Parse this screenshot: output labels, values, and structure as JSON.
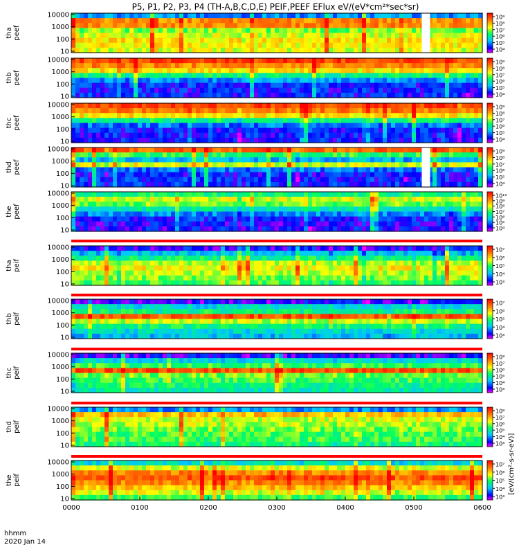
{
  "chart_data": {
    "type": "heatmap",
    "title": "P5, P1, P2, P3, P4 (TH-A,B,C,D,E) PEIF,PEEF EFlux eV/(eV*cm²*sec*sr)",
    "xlabel": "hhmm",
    "date_label": "2020 Jan 14",
    "x_ticks": [
      "0000",
      "0100",
      "0200",
      "0300",
      "0400",
      "0500",
      "0600"
    ],
    "xlim": [
      "0000",
      "0600"
    ],
    "y_scale": "log",
    "colorbar_label": "[eV/(cm²-s-sr-eV)]",
    "panels": [
      {
        "label": [
          "tha",
          "peef"
        ],
        "y_ticks": [
          "10000",
          "1000",
          "100",
          "10"
        ],
        "cbar_ticks": [
          "10⁹",
          "10⁸",
          "10⁷",
          "10⁶",
          "10⁵",
          "10⁴"
        ],
        "gap": [
          "0450",
          "0500"
        ]
      },
      {
        "label": [
          "thb",
          "peef"
        ],
        "y_ticks": [
          "10000",
          "1000",
          "100",
          "10"
        ],
        "cbar_ticks": [
          "10⁹",
          "10⁸",
          "10⁷",
          "10⁶",
          "10⁵",
          "10⁴"
        ]
      },
      {
        "label": [
          "thc",
          "peef"
        ],
        "y_ticks": [
          "10000",
          "1000",
          "100",
          "10"
        ],
        "cbar_ticks": [
          "10⁹",
          "10⁸",
          "10⁷",
          "10⁶",
          "10⁵",
          "10⁴"
        ]
      },
      {
        "label": [
          "thd",
          "peef"
        ],
        "y_ticks": [
          "10000",
          "1000",
          "100",
          "10"
        ],
        "cbar_ticks": [
          "10⁹",
          "10⁸",
          "10⁷",
          "10⁶",
          "10⁵",
          "10⁴"
        ],
        "gap": [
          "0450",
          "0500"
        ]
      },
      {
        "label": [
          "the",
          "peef"
        ],
        "y_ticks": [
          "10000",
          "1000",
          "100",
          "10"
        ],
        "cbar_ticks": [
          "10¹⁰",
          "10⁹",
          "10⁸",
          "10⁷",
          "10⁶",
          "10⁵",
          "10⁴"
        ]
      },
      {
        "label": [
          "tha",
          "peif"
        ],
        "y_ticks": [
          "10000",
          "1000",
          "100",
          "10"
        ],
        "cbar_ticks": [
          "10⁷",
          "10⁶",
          "10⁵",
          "10⁴",
          "10³"
        ]
      },
      {
        "label": [
          "thb",
          "peif"
        ],
        "y_ticks": [
          "10000",
          "1000",
          "100",
          "10"
        ],
        "cbar_ticks": [
          "10⁷",
          "10⁶",
          "10⁵",
          "10⁴",
          "10³"
        ]
      },
      {
        "label": [
          "thc",
          "peif"
        ],
        "y_ticks": [
          "10000",
          "1000",
          "100",
          "10"
        ],
        "cbar_ticks": [
          "10⁸",
          "10⁷",
          "10⁶",
          "10⁵",
          "10⁴",
          "10³"
        ]
      },
      {
        "label": [
          "thd",
          "peif"
        ],
        "y_ticks": [
          "10000",
          "1000",
          "100",
          "10"
        ],
        "cbar_ticks": [
          "10⁸",
          "10⁷",
          "10⁶",
          "10⁵",
          "10⁴",
          "10³"
        ]
      },
      {
        "label": [
          "the",
          "peif"
        ],
        "y_ticks": [
          "10000",
          "1000",
          "100",
          "10"
        ],
        "cbar_ticks": [
          "10⁷",
          "10⁶",
          "10⁵",
          "10⁴",
          "10³"
        ]
      }
    ]
  }
}
